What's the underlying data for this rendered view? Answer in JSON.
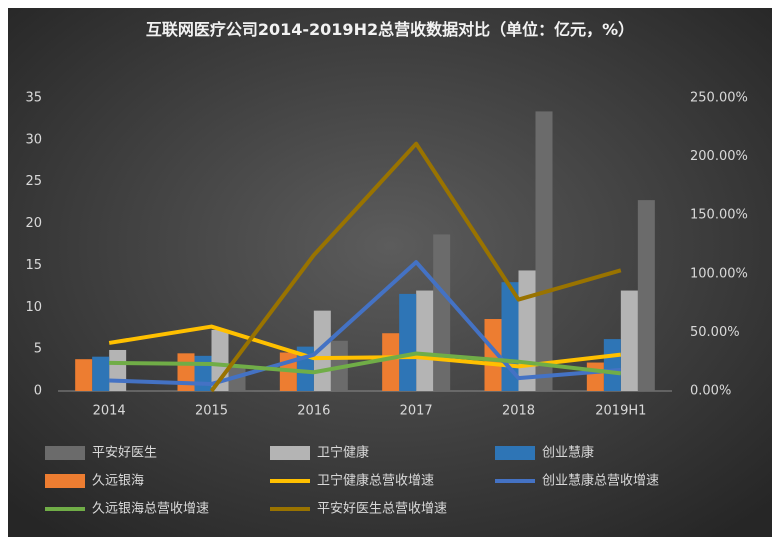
{
  "chart_data": {
    "type": "bar_line",
    "title": "互联网医疗公司2014-2019H2总营收数据对比（单位：亿元，%）",
    "categories": [
      "2014",
      "2015",
      "2016",
      "2017",
      "2018",
      "2019H1"
    ],
    "ylim": [
      0,
      35
    ],
    "yticks": [
      0,
      5,
      10,
      15,
      20,
      25,
      30,
      35
    ],
    "y2lim": [
      0,
      250
    ],
    "y2ticks": [
      {
        "value": 0,
        "label": "0.00%"
      },
      {
        "value": 50,
        "label": "50.00%"
      },
      {
        "value": 100,
        "label": "100.00%"
      },
      {
        "value": 150,
        "label": "150.00%"
      },
      {
        "value": 200,
        "label": "200.00%"
      },
      {
        "value": 250,
        "label": "250.00%"
      }
    ],
    "grid": false,
    "series": [
      {
        "name": "平安好医生",
        "kind": "bar",
        "color": "#6b6b6b",
        "values": [
          null,
          3.0,
          6.0,
          18.7,
          33.4,
          22.8
        ]
      },
      {
        "name": "卫宁健康",
        "kind": "bar",
        "color": "#b4b4b4",
        "values": [
          4.9,
          7.3,
          9.6,
          12.0,
          14.4,
          12.0
        ]
      },
      {
        "name": "创业慧康",
        "kind": "bar",
        "color": "#2e75b6",
        "values": [
          4.1,
          4.2,
          5.3,
          11.6,
          13.0,
          6.2
        ]
      },
      {
        "name": "久远银海",
        "kind": "bar",
        "color": "#ed7d31",
        "values": [
          3.8,
          4.5,
          4.6,
          6.9,
          8.6,
          3.4
        ]
      },
      {
        "name": "卫宁健康总营收增速",
        "kind": "line",
        "axis": "y2",
        "color": "#ffc000",
        "values": [
          41,
          55,
          28,
          29,
          21,
          31
        ]
      },
      {
        "name": "创业慧康总营收增速",
        "kind": "line",
        "axis": "y2",
        "color": "#4472c4",
        "values": [
          9,
          6,
          31,
          110,
          11,
          18
        ]
      },
      {
        "name": "久远银海总营收增速",
        "kind": "line",
        "axis": "y2",
        "color": "#70ad47",
        "values": [
          24,
          23,
          16,
          32,
          25,
          15
        ]
      },
      {
        "name": "平安好医生总营收增速",
        "kind": "line",
        "axis": "y2",
        "color": "#997300",
        "values": [
          null,
          0,
          116,
          211,
          78,
          103
        ]
      }
    ],
    "bar_order": [
      3,
      2,
      1,
      0
    ]
  }
}
